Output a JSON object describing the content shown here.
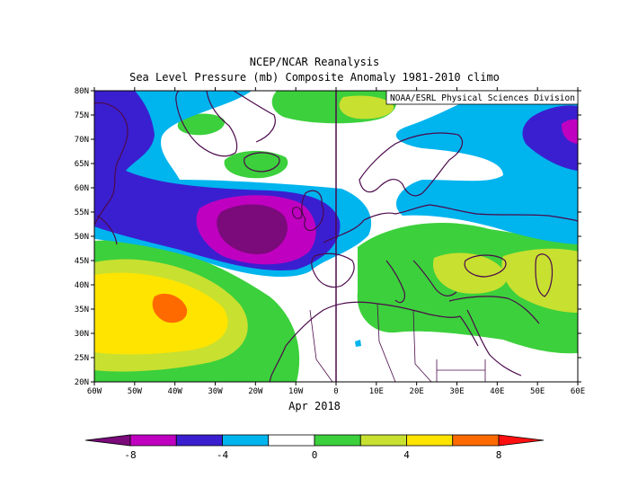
{
  "header": {
    "title": "NCEP/NCAR Reanalysis",
    "subtitle": "Sea Level Pressure (mb) Composite Anomaly 1981-2010 climo"
  },
  "map": {
    "credit": "NOAA/ESRL Physical Sciences Division",
    "period": "Apr 2018",
    "lon_labels": [
      "60W",
      "50W",
      "40W",
      "30W",
      "20W",
      "10W",
      "0",
      "10E",
      "20E",
      "30E",
      "40E",
      "50E",
      "60E"
    ],
    "lat_labels": [
      "80N",
      "75N",
      "70N",
      "65N",
      "60N",
      "55N",
      "50N",
      "45N",
      "40N",
      "35N",
      "30N",
      "25N",
      "20N"
    ]
  },
  "colorbar": {
    "labels": [
      "-8",
      "-4",
      "0",
      "4",
      "8"
    ],
    "colors": [
      "#7b0a7b",
      "#c000c0",
      "#3a1fd0",
      "#00b4ee",
      "#ffffff",
      "#3cd03c",
      "#c8e030",
      "#ffe400",
      "#ff6a00",
      "#ff1010"
    ]
  }
}
